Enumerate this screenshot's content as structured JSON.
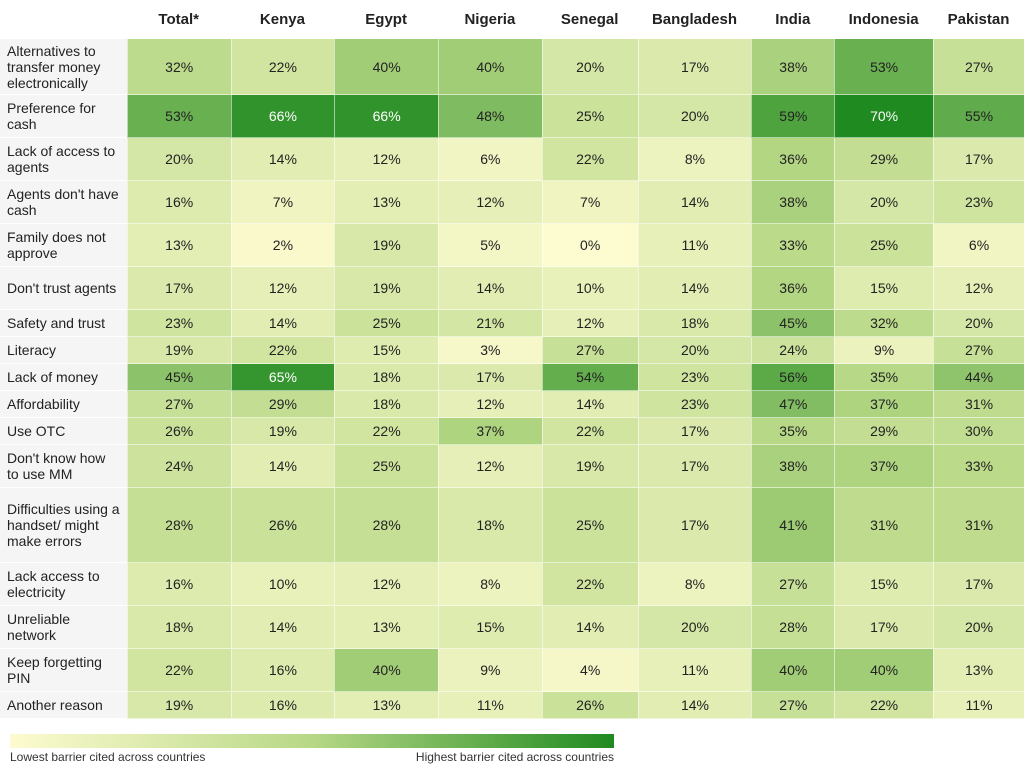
{
  "chart_data": {
    "type": "heatmap",
    "columns": [
      "Total*",
      "Kenya",
      "Egypt",
      "Nigeria",
      "Senegal",
      "Bangladesh",
      "India",
      "Indonesia",
      "Pakistan"
    ],
    "rows": [
      {
        "label": "Alternatives to transfer money electronically",
        "values": [
          32,
          22,
          40,
          40,
          20,
          17,
          38,
          53,
          27
        ]
      },
      {
        "label": "Preference for cash",
        "values": [
          53,
          66,
          66,
          48,
          25,
          20,
          59,
          70,
          55
        ]
      },
      {
        "label": "Lack of access to agents",
        "values": [
          20,
          14,
          12,
          6,
          22,
          8,
          36,
          29,
          17
        ]
      },
      {
        "label": "Agents don't have cash",
        "values": [
          16,
          7,
          13,
          12,
          7,
          14,
          38,
          20,
          23
        ]
      },
      {
        "label": "Family does not approve",
        "values": [
          13,
          2,
          19,
          5,
          0,
          11,
          33,
          25,
          6
        ]
      },
      {
        "label": "Don't trust agents",
        "values": [
          17,
          12,
          19,
          14,
          10,
          14,
          36,
          15,
          12
        ]
      },
      {
        "label": "Safety and trust",
        "values": [
          23,
          14,
          25,
          21,
          12,
          18,
          45,
          32,
          20
        ]
      },
      {
        "label": "Literacy",
        "values": [
          19,
          22,
          15,
          3,
          27,
          20,
          24,
          9,
          27
        ]
      },
      {
        "label": "Lack of money",
        "values": [
          45,
          65,
          18,
          17,
          54,
          23,
          56,
          35,
          44
        ]
      },
      {
        "label": "Affordability",
        "values": [
          27,
          29,
          18,
          12,
          14,
          23,
          47,
          37,
          31
        ]
      },
      {
        "label": "Use OTC",
        "values": [
          26,
          19,
          22,
          37,
          22,
          17,
          35,
          29,
          30
        ]
      },
      {
        "label": "Don't know how to use MM",
        "values": [
          24,
          14,
          25,
          12,
          19,
          17,
          38,
          37,
          33
        ]
      },
      {
        "label": "Difficulties using a handset/ might make errors",
        "values": [
          28,
          26,
          28,
          18,
          25,
          17,
          41,
          31,
          31
        ]
      },
      {
        "label": "Lack access to electricity",
        "values": [
          16,
          10,
          12,
          8,
          22,
          8,
          27,
          15,
          17
        ]
      },
      {
        "label": "Unreliable network",
        "values": [
          18,
          14,
          13,
          15,
          14,
          20,
          28,
          17,
          20
        ]
      },
      {
        "label": "Keep forgetting PIN",
        "values": [
          22,
          16,
          40,
          9,
          4,
          11,
          40,
          40,
          13
        ]
      },
      {
        "label": "Another reason",
        "values": [
          19,
          16,
          13,
          11,
          26,
          14,
          27,
          22,
          11
        ]
      }
    ],
    "value_suffix": "%",
    "color_scale": {
      "low": "#fdfbd0",
      "mid": "#b7d886",
      "high": "#1f8a1f"
    },
    "legend": {
      "low_label": "Lowest barrier cited across countries",
      "high_label": "Highest barrier cited across countries",
      "placement": "bottom-left"
    }
  }
}
